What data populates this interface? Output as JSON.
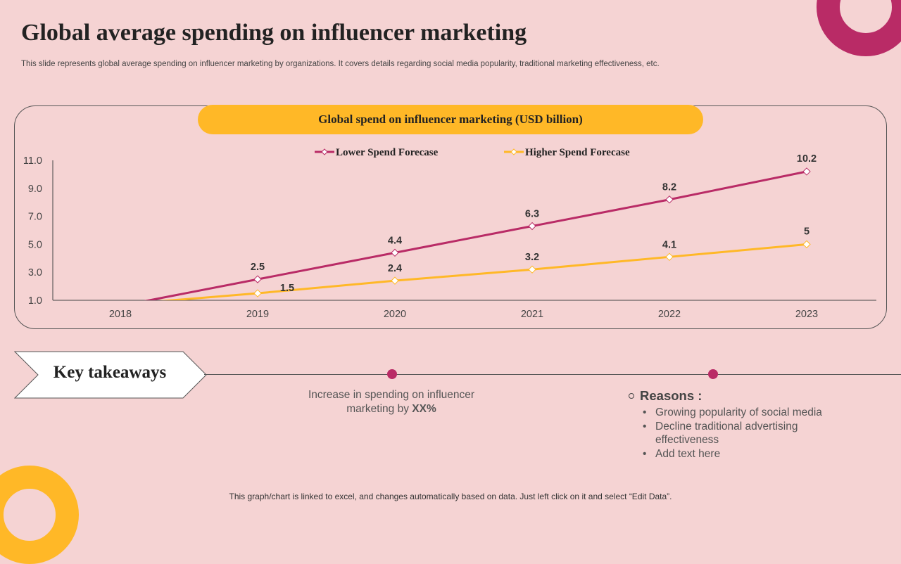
{
  "slide": {
    "title": "Global average spending on influencer marketing",
    "subtitle": "This slide represents global average spending on influencer marketing by organizations. It covers details regarding social media popularity, traditional marketing effectiveness, etc.",
    "footer": "This graph/chart is linked to excel, and changes automatically based on data.  Just left click on it and select “Edit Data”."
  },
  "colors": {
    "background": "#f5d3d3",
    "magenta": "#b92b66",
    "yellow": "#ffb827"
  },
  "chart_data": {
    "type": "line",
    "title": "Global spend on influencer marketing (USD billion)",
    "categories": [
      "2018",
      "2019",
      "2020",
      "2021",
      "2022",
      "2023"
    ],
    "ylim": [
      1.0,
      11.0
    ],
    "yticks": [
      "1.0",
      "3.0",
      "5.0",
      "7.0",
      "9.0",
      "11.0"
    ],
    "legend_position": "top",
    "grid": false,
    "series": [
      {
        "name": "Lower Spend Forecase",
        "color": "#b92b66",
        "values": [
          0.6,
          2.5,
          4.4,
          6.3,
          8.2,
          10.2
        ],
        "labels": [
          "",
          "2.5",
          "4.4",
          "6.3",
          "8.2",
          "10.2"
        ]
      },
      {
        "name": "Higher Spend Forecase",
        "color": "#ffb827",
        "values": [
          0.7,
          1.5,
          2.4,
          3.2,
          4.1,
          5
        ],
        "labels": [
          "",
          "1.5",
          "2.4",
          "3.2",
          "4.1",
          "5"
        ]
      }
    ]
  },
  "takeaways": {
    "label": "Key takeaways",
    "increase_text": "Increase  in spending on influencer marketing by ",
    "increase_value": "XX%",
    "reasons_title": "Reasons :",
    "reasons": [
      "Growing popularity of social media",
      "Decline traditional advertising effectiveness",
      "Add text here"
    ]
  }
}
